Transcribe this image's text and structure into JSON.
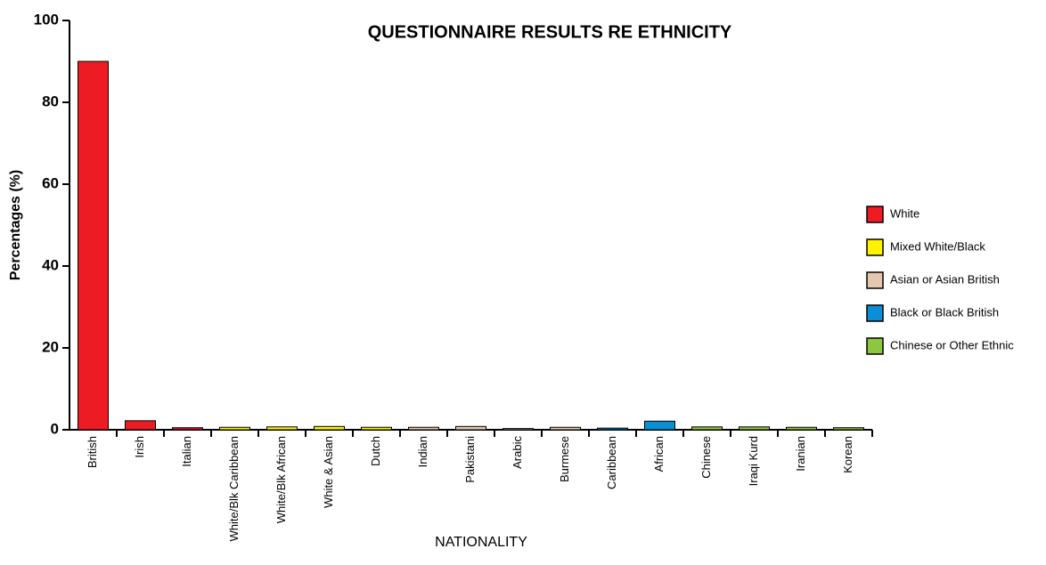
{
  "chart_data": {
    "type": "bar",
    "title": "QUESTIONNAIRE RESULTS RE ETHNICITY",
    "x_label": "NATIONALITY",
    "y_label": "Percentages (%)",
    "categories": [
      "British",
      "Irish",
      "Italian",
      "White/Blk Caribbean",
      "White/Blk African",
      "White & Asian",
      "Dutch",
      "Indian",
      "Pakistani",
      "Arabic",
      "Burmese",
      "Caribbean",
      "African",
      "Chinese",
      "Iraqi Kurd",
      "Iranian",
      "Korean"
    ],
    "values": [
      90,
      2.2,
      0.5,
      0.6,
      0.7,
      0.8,
      0.6,
      0.6,
      0.8,
      0.3,
      0.6,
      0.4,
      2.1,
      0.7,
      0.7,
      0.6,
      0.5
    ],
    "colors": [
      "#ed1c24",
      "#ed1c24",
      "#ed1c24",
      "#fff200",
      "#fff200",
      "#fff200",
      "#fff200",
      "#e3c8ad",
      "#e3c8ad",
      "#e3c8ad",
      "#e3c8ad",
      "#0a8fd6",
      "#0a8fd6",
      "#8dc63f",
      "#8dc63f",
      "#8dc63f",
      "#8dc63f"
    ],
    "legend": [
      {
        "name": "White",
        "color": "#ed1c24"
      },
      {
        "name": "Mixed White/Black",
        "color": "#fff200"
      },
      {
        "name": "Asian or Asian British",
        "color": "#e3c8ad"
      },
      {
        "name": "Black or Black British",
        "color": "#0a8fd6"
      },
      {
        "name": "Chinese or Other Ethnic",
        "color": "#8dc63f"
      }
    ],
    "ylim": [
      0,
      100
    ],
    "yticks": [
      0,
      20,
      40,
      60,
      80,
      100
    ],
    "grid": false
  }
}
